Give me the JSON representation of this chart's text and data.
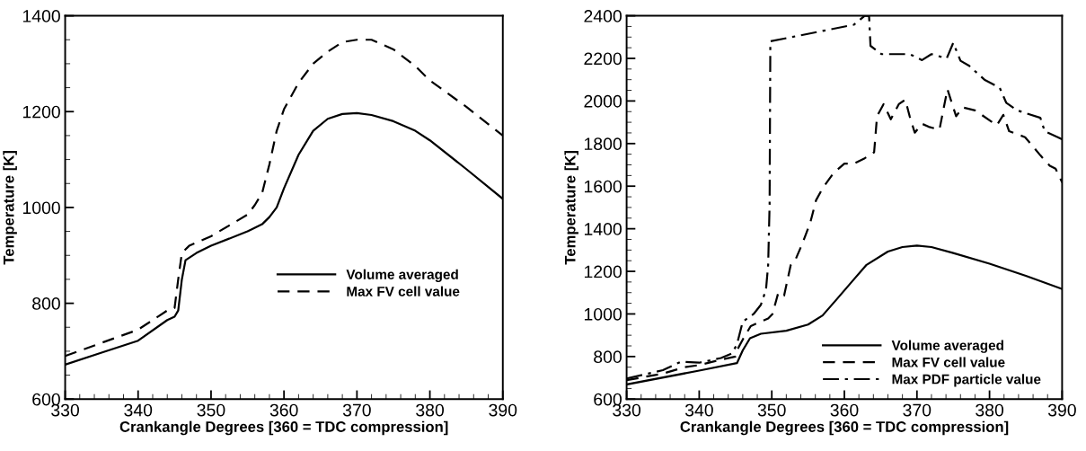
{
  "chart_data": [
    {
      "type": "line",
      "xlabel": "Crankangle Degrees [360 = TDC compression]",
      "ylabel": "Temperature [K]",
      "xlim": [
        330,
        390
      ],
      "ylim": [
        600,
        1400
      ],
      "xticks": [
        330,
        340,
        350,
        360,
        370,
        380,
        390
      ],
      "yticks": [
        600,
        800,
        1000,
        1200,
        1400
      ],
      "legend": "right",
      "grid": false,
      "marker": "none",
      "series": [
        {
          "name": "Volume averaged",
          "color": "#000000",
          "line_style": "solid",
          "x": [
            330,
            335,
            340,
            344,
            345,
            345.5,
            346,
            346.5,
            348,
            350,
            355,
            357,
            358,
            359,
            360,
            362,
            364,
            366,
            368,
            370,
            372,
            375,
            378,
            380,
            385,
            390
          ],
          "values": [
            672,
            697,
            722,
            765,
            772,
            785,
            850,
            890,
            905,
            920,
            950,
            965,
            980,
            1000,
            1040,
            1110,
            1160,
            1185,
            1195,
            1197,
            1193,
            1180,
            1160,
            1140,
            1080,
            1018
          ]
        },
        {
          "name": "Max FV cell value",
          "color": "#000000",
          "line_style": "dashed",
          "x": [
            330,
            340,
            344,
            345,
            345.5,
            346,
            347,
            350,
            355,
            356,
            357,
            358,
            359,
            360,
            362,
            364,
            366,
            368,
            370,
            372,
            375,
            378,
            380,
            385,
            390
          ],
          "values": [
            690,
            745,
            785,
            790,
            850,
            905,
            920,
            940,
            985,
            1005,
            1030,
            1090,
            1160,
            1205,
            1260,
            1300,
            1325,
            1345,
            1350,
            1350,
            1330,
            1295,
            1265,
            1210,
            1150
          ]
        }
      ]
    },
    {
      "type": "line",
      "xlabel": "Crankangle Degrees [360 = TDC compression]",
      "ylabel": "Temperature [K]",
      "xlim": [
        330,
        390
      ],
      "ylim": [
        600,
        2400
      ],
      "xticks": [
        330,
        340,
        350,
        360,
        370,
        380,
        390
      ],
      "yticks": [
        600,
        800,
        1000,
        1200,
        1400,
        1600,
        1800,
        2000,
        2200,
        2400
      ],
      "legend": "bottom right",
      "grid": false,
      "marker": "none",
      "series": [
        {
          "name": "Volume averaged",
          "color": "#000000",
          "line_style": "solid",
          "x": [
            330,
            340,
            345.2,
            346,
            347,
            348.5,
            352,
            355,
            357,
            359,
            361,
            363,
            366,
            368,
            370,
            372,
            375,
            380,
            385,
            390
          ],
          "values": [
            669,
            734,
            769,
            829,
            886,
            907,
            921,
            950,
            993,
            1071,
            1150,
            1229,
            1293,
            1314,
            1321,
            1314,
            1286,
            1236,
            1179,
            1117
          ]
        },
        {
          "name": "Max FV cell value",
          "color": "#000000",
          "line_style": "dashed",
          "x": [
            330,
            335,
            338,
            340,
            343,
            345,
            345.2,
            346.1,
            347.1,
            348,
            349.5,
            350.1,
            350.9,
            351.7,
            352.6,
            353.2,
            354.2,
            355.3,
            356.1,
            357,
            358.5,
            360,
            361.3,
            362.8,
            364.1,
            364.5,
            365.4,
            366.4,
            367.5,
            368.4,
            369,
            369.7,
            370.7,
            371.6,
            373.1,
            374.2,
            375.4,
            376.3,
            378,
            380.4,
            381,
            381.9,
            382.7,
            384.9,
            387,
            388.3,
            389.1,
            390
          ],
          "values": [
            689,
            720,
            750,
            760,
            785,
            800,
            829,
            886,
            943,
            957,
            979,
            1000,
            1100,
            1086,
            1229,
            1250,
            1329,
            1428,
            1534,
            1590,
            1661,
            1706,
            1706,
            1731,
            1759,
            1928,
            1985,
            1914,
            1985,
            2006,
            1928,
            1851,
            1893,
            1879,
            1865,
            2055,
            1928,
            1970,
            1956,
            1900,
            1886,
            1935,
            1858,
            1830,
            1745,
            1696,
            1682,
            1618
          ]
        },
        {
          "name": "Max PDF particle value",
          "color": "#000000",
          "line_style": "dashdot",
          "x": [
            330,
            335,
            337.5,
            340,
            343,
            344.5,
            345.2,
            346,
            347.5,
            348.5,
            349.2,
            349.5,
            349.7,
            349.8,
            361.3,
            362.8,
            363.4,
            363.6,
            365.1,
            369,
            370.7,
            372,
            374.1,
            375,
            376,
            377.2,
            379.3,
            381.4,
            382.3,
            383.8,
            387,
            387.6,
            389.4,
            390
          ],
          "values": [
            697,
            736,
            776,
            771,
            793,
            814,
            857,
            964,
            1000,
            1043,
            1114,
            1229,
            1514,
            2280,
            2358,
            2400,
            2400,
            2259,
            2220,
            2220,
            2192,
            2220,
            2200,
            2273,
            2189,
            2165,
            2100,
            2062,
            1992,
            1956,
            1921,
            1858,
            1830,
            1820
          ]
        }
      ]
    }
  ]
}
